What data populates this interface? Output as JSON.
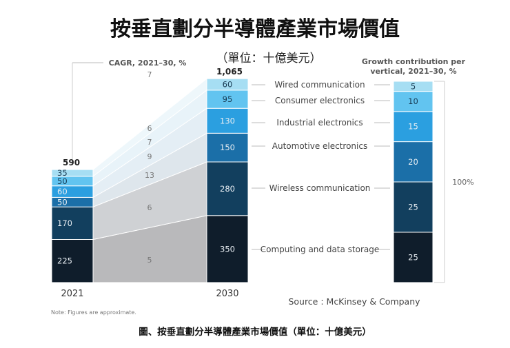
{
  "title": "按垂直劃分半導體產業市場價值",
  "subtitle": "（單位：十億美元）",
  "caption": "圖、按垂直劃分半導體產業市場價值（單位：十億美元）",
  "source": "Source : McKinsey & Company",
  "note": "Note: Figures are approximate.",
  "cagr_label": "CAGR, 2021–30, %",
  "growth_label_line1": "Growth contribution per",
  "growth_label_line2": "vertical, 2021–30, %",
  "growth_total_label": "100%",
  "colors": [
    "#0f1d2b",
    "#123f5e",
    "#1b6fa8",
    "#2b9fe0",
    "#62c4f0",
    "#a6def3"
  ],
  "chart_data": [
    {
      "type": "bar",
      "stacked": true,
      "categories": [
        "2021",
        "2030"
      ],
      "totals": [
        "590",
        "1,065"
      ],
      "series": [
        {
          "name": "Computing and data storage",
          "values": [
            225,
            350
          ],
          "cagr": "5"
        },
        {
          "name": "Wireless communication",
          "values": [
            170,
            280
          ],
          "cagr": "6"
        },
        {
          "name": "Automotive electronics",
          "values": [
            50,
            150
          ],
          "cagr": "13"
        },
        {
          "name": "Industrial electronics",
          "values": [
            60,
            130
          ],
          "cagr": "9"
        },
        {
          "name": "Consumer electronics",
          "values": [
            50,
            95
          ],
          "cagr": "7"
        },
        {
          "name": "Wired communication",
          "values": [
            35,
            60
          ],
          "cagr": "6"
        }
      ],
      "cagr_total": "7"
    },
    {
      "type": "bar",
      "stacked": true,
      "title": "Growth contribution per vertical, 2021–30, %",
      "values": [
        25,
        25,
        20,
        15,
        10,
        5
      ],
      "total": "100%"
    }
  ]
}
